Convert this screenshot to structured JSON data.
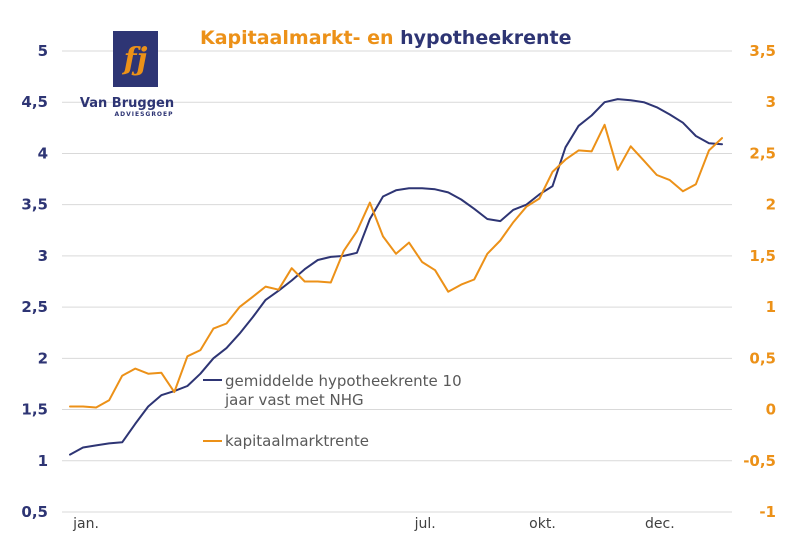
{
  "colors": {
    "navy": "#2e3574",
    "orange": "#ec9118",
    "grid": "#d9d9d9",
    "tick_left": "#2e3574",
    "tick_right": "#ec9118"
  },
  "logo": {
    "name": "Van Bruggen",
    "sub": "ADVIESGROEP",
    "mark": "fj"
  },
  "chart_data": {
    "type": "line",
    "title_parts": [
      "Kapitaalmarkt- en ",
      "hypotheekrente"
    ],
    "title_colors": [
      "#ec9118",
      "#2e3574"
    ],
    "x_labels": [
      {
        "label": "jan.",
        "at": 2
      },
      {
        "label": "jul.",
        "at": 28
      },
      {
        "label": "okt.",
        "at": 37
      },
      {
        "label": "dec.",
        "at": 46
      }
    ],
    "left_axis": {
      "ylim": [
        0.5,
        5
      ],
      "ticks": [
        0.5,
        1,
        1.5,
        2,
        2.5,
        3,
        3.5,
        4,
        4.5,
        5
      ],
      "tick_labels": [
        "0,5",
        "1",
        "1,5",
        "2",
        "2,5",
        "3",
        "3,5",
        "4",
        "4,5",
        "5"
      ]
    },
    "right_axis": {
      "ylim": [
        -1,
        3.5
      ],
      "ticks": [
        -1,
        -0.5,
        0,
        0.5,
        1,
        1.5,
        2,
        2.5,
        3,
        3.5
      ],
      "tick_labels": [
        "-1",
        "-0,5",
        "0",
        "0,5",
        "1",
        "1,5",
        "2",
        "2,5",
        "3",
        "3,5"
      ]
    },
    "grid": true,
    "series": [
      {
        "name": "gemiddelde hypotheekrente 10 jaar vast met NHG",
        "axis": "left",
        "color": "#2e3574",
        "values": [
          1.06,
          1.13,
          1.15,
          1.17,
          1.18,
          1.36,
          1.53,
          1.64,
          1.68,
          1.73,
          1.85,
          2.0,
          2.1,
          2.24,
          2.4,
          2.57,
          2.66,
          2.76,
          2.87,
          2.96,
          2.99,
          3.0,
          3.03,
          3.36,
          3.58,
          3.64,
          3.66,
          3.66,
          3.65,
          3.62,
          3.55,
          3.46,
          3.36,
          3.34,
          3.45,
          3.5,
          3.6,
          3.68,
          4.06,
          4.27,
          4.37,
          4.5,
          4.53,
          4.52,
          4.5,
          4.45,
          4.38,
          4.3,
          4.17,
          4.1,
          4.09
        ]
      },
      {
        "name": "kapitaalmarktrente",
        "axis": "right",
        "color": "#ec9118",
        "values": [
          0.03,
          0.03,
          0.02,
          0.09,
          0.33,
          0.4,
          0.35,
          0.36,
          0.17,
          0.52,
          0.58,
          0.79,
          0.84,
          1.0,
          1.1,
          1.2,
          1.17,
          1.38,
          1.25,
          1.25,
          1.24,
          1.55,
          1.74,
          2.02,
          1.69,
          1.52,
          1.63,
          1.44,
          1.36,
          1.15,
          1.22,
          1.27,
          1.52,
          1.65,
          1.83,
          1.98,
          2.06,
          2.32,
          2.44,
          2.53,
          2.52,
          2.78,
          2.34,
          2.57,
          2.43,
          2.29,
          2.24,
          2.13,
          2.2,
          2.53,
          2.65
        ]
      }
    ],
    "legend": {
      "placement": "center",
      "entries": [
        {
          "lines": [
            "gemiddelde hypotheekrente 10",
            "jaar vast met NHG"
          ],
          "color": "#2e3574"
        },
        {
          "lines": [
            "kapitaalmarktrente"
          ],
          "color": "#ec9118"
        }
      ]
    }
  }
}
